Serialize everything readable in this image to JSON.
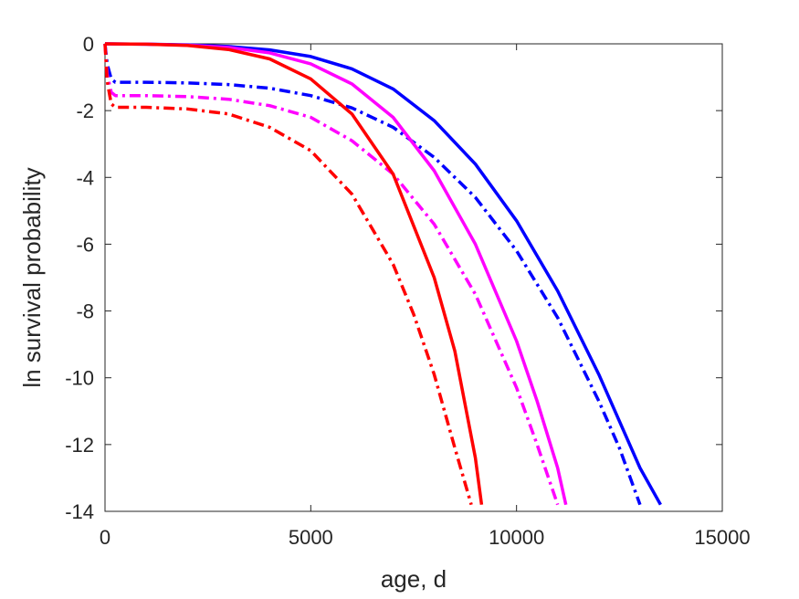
{
  "chart_data": {
    "type": "line",
    "xlabel": "age, d",
    "ylabel": "ln survival probability",
    "xlim": [
      0,
      15000
    ],
    "ylim": [
      -14,
      0
    ],
    "xticks": [
      0,
      5000,
      10000,
      15000
    ],
    "yticks": [
      0,
      -2,
      -4,
      -6,
      -8,
      -10,
      -12,
      -14
    ],
    "grid": false,
    "series": [
      {
        "color": "#0000ff",
        "dash": "solid",
        "x": [
          0,
          1000,
          2000,
          3000,
          4000,
          5000,
          6000,
          7000,
          8000,
          9000,
          10000,
          11000,
          12000,
          13000,
          13500
        ],
        "y": [
          0,
          -0.01,
          -0.03,
          -0.08,
          -0.18,
          -0.38,
          -0.75,
          -1.35,
          -2.3,
          -3.6,
          -5.3,
          -7.4,
          -9.9,
          -12.7,
          -13.8
        ]
      },
      {
        "color": "#0000ff",
        "dash": "dashdot",
        "x": [
          0,
          50,
          150,
          250,
          1000,
          2000,
          3000,
          4000,
          5000,
          6000,
          7000,
          8000,
          9000,
          10000,
          11000,
          12000,
          12500,
          13000
        ],
        "y": [
          0,
          -0.6,
          -1.05,
          -1.15,
          -1.15,
          -1.17,
          -1.22,
          -1.33,
          -1.55,
          -1.92,
          -2.5,
          -3.4,
          -4.6,
          -6.2,
          -8.2,
          -10.7,
          -12.1,
          -13.8
        ]
      },
      {
        "color": "#ff00ff",
        "dash": "solid",
        "x": [
          0,
          1000,
          2000,
          3000,
          4000,
          5000,
          6000,
          7000,
          8000,
          9000,
          10000,
          10500,
          11000,
          11200
        ],
        "y": [
          0,
          -0.01,
          -0.04,
          -0.11,
          -0.27,
          -0.6,
          -1.2,
          -2.2,
          -3.8,
          -6.0,
          -8.9,
          -10.7,
          -12.7,
          -13.8
        ]
      },
      {
        "color": "#ff00ff",
        "dash": "dashdot",
        "x": [
          0,
          50,
          150,
          250,
          1000,
          2000,
          3000,
          4000,
          5000,
          6000,
          7000,
          8000,
          9000,
          10000,
          10500,
          11000
        ],
        "y": [
          0,
          -0.9,
          -1.45,
          -1.55,
          -1.55,
          -1.58,
          -1.66,
          -1.85,
          -2.2,
          -2.9,
          -3.9,
          -5.4,
          -7.5,
          -10.3,
          -12.0,
          -13.8
        ]
      },
      {
        "color": "#ff0000",
        "dash": "solid",
        "x": [
          0,
          1000,
          2000,
          3000,
          4000,
          5000,
          6000,
          7000,
          8000,
          8500,
          9000,
          9150
        ],
        "y": [
          0,
          -0.01,
          -0.05,
          -0.17,
          -0.45,
          -1.05,
          -2.1,
          -3.9,
          -7.0,
          -9.2,
          -12.4,
          -13.8
        ]
      },
      {
        "color": "#ff0000",
        "dash": "dashdot",
        "x": [
          0,
          50,
          150,
          250,
          1000,
          2000,
          3000,
          4000,
          5000,
          6000,
          7000,
          7500,
          8000,
          8500,
          8900
        ],
        "y": [
          0,
          -1.1,
          -1.8,
          -1.9,
          -1.9,
          -1.95,
          -2.1,
          -2.5,
          -3.2,
          -4.5,
          -6.6,
          -8.1,
          -9.9,
          -12.1,
          -13.8
        ]
      }
    ]
  }
}
